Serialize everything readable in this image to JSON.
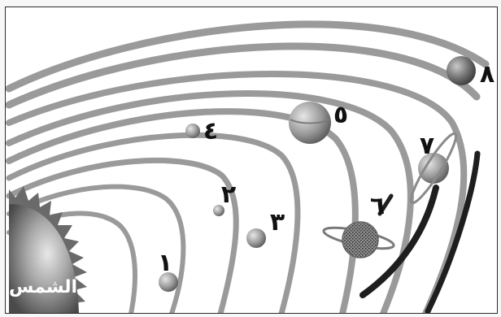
{
  "diagram": {
    "sun_label": "الشمس",
    "planet_numbers": [
      "١",
      "٢",
      "٣",
      "٤",
      "٥",
      "٦",
      "٧",
      "٨"
    ]
  },
  "colors": {
    "orbit": "#9a9a9a",
    "orbit_dark": "#1e1e1e",
    "sun_light": "#d9d9d9",
    "sun_dark": "#555555",
    "planet": "#9c9c9c",
    "text": "#111111"
  }
}
